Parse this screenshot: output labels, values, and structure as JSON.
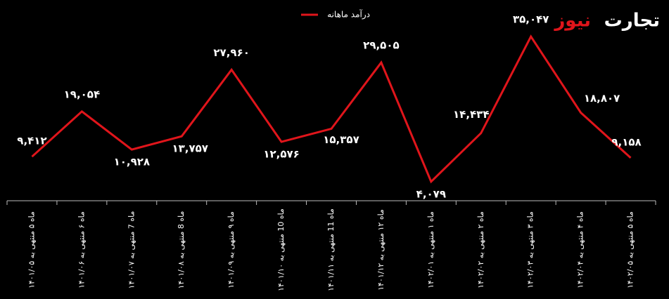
{
  "chart_data": {
    "type": "line",
    "logo": {
      "part1": "تجارت",
      "part2": "نیوز"
    },
    "categories": [
      "ماه ۵ منتهی به ۱۴۰۱/۰۵",
      "ماه ۶ منتهی به ۱۴۰۱/۰۶",
      "ماه 7 منتهی به ۱۴۰۱/۰۷",
      "ماه 8 منتهی به ۱۴۰۱/۰۸",
      "ماه ۹ منتهی به ۱۴۰۱/۰۹",
      "ماه 10 منتهی به ۱۴۰۱/۱۰",
      "ماه 11 منتهی به ۱۴۰۱/۱۱",
      "ماه ۱۲ منتهی به ۱۴۰۱/۱۲",
      "ماه ۱ منتهی به ۱۴۰۲/۰۱",
      "ماه ۲ منتهی به ۱۴۰۲/۰۲",
      "ماه ۳ منتهی به ۱۴۰۲/۰۳",
      "ماه ۴ منتهی به ۱۴۰۲/۰۴",
      "ماه ۵ منتهی به ۱۴۰۲/۰۵"
    ],
    "series": [
      {
        "name": "درآمد ماهانه",
        "color": "#e0151b",
        "values": [
          9412,
          19054,
          10928,
          13757,
          27960,
          12576,
          15357,
          29505,
          4079,
          14434,
          35047,
          18807,
          9158
        ],
        "value_labels": [
          "۹,۴۱۲",
          "۱۹,۰۵۴",
          "۱۰,۹۲۸",
          "۱۳,۷۵۷",
          "۲۷,۹۶۰",
          "۱۲,۵۷۶",
          "۱۵,۳۵۷",
          "۲۹,۵۰۵",
          "۴,۰۷۹",
          "۱۴,۴۳۴",
          "۳۵,۰۴۷",
          "۱۸,۸۰۷",
          "۹,۱۵۸"
        ]
      }
    ],
    "ylim": [
      0,
      40000
    ],
    "legend": "top"
  }
}
